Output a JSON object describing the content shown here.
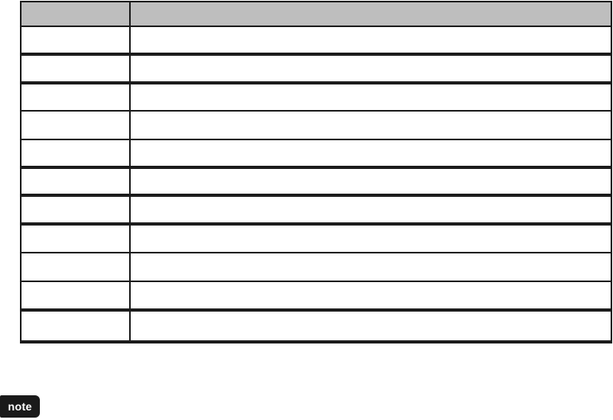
{
  "note": {
    "label": "note"
  },
  "table": {
    "columns": [
      "",
      ""
    ],
    "rows": [
      [
        "",
        ""
      ],
      [
        "",
        ""
      ],
      [
        "",
        ""
      ],
      [
        "",
        ""
      ],
      [
        "",
        ""
      ],
      [
        "",
        ""
      ],
      [
        "",
        ""
      ],
      [
        "",
        ""
      ],
      [
        "",
        ""
      ],
      [
        "",
        ""
      ],
      [
        "",
        ""
      ]
    ]
  },
  "colors": {
    "header_fill": "#bebebe",
    "table_border": "#1c1c1c",
    "note_badge_bg": "#1a1a1a",
    "note_badge_text": "#ffffff",
    "page_bg": "#ffffff"
  }
}
